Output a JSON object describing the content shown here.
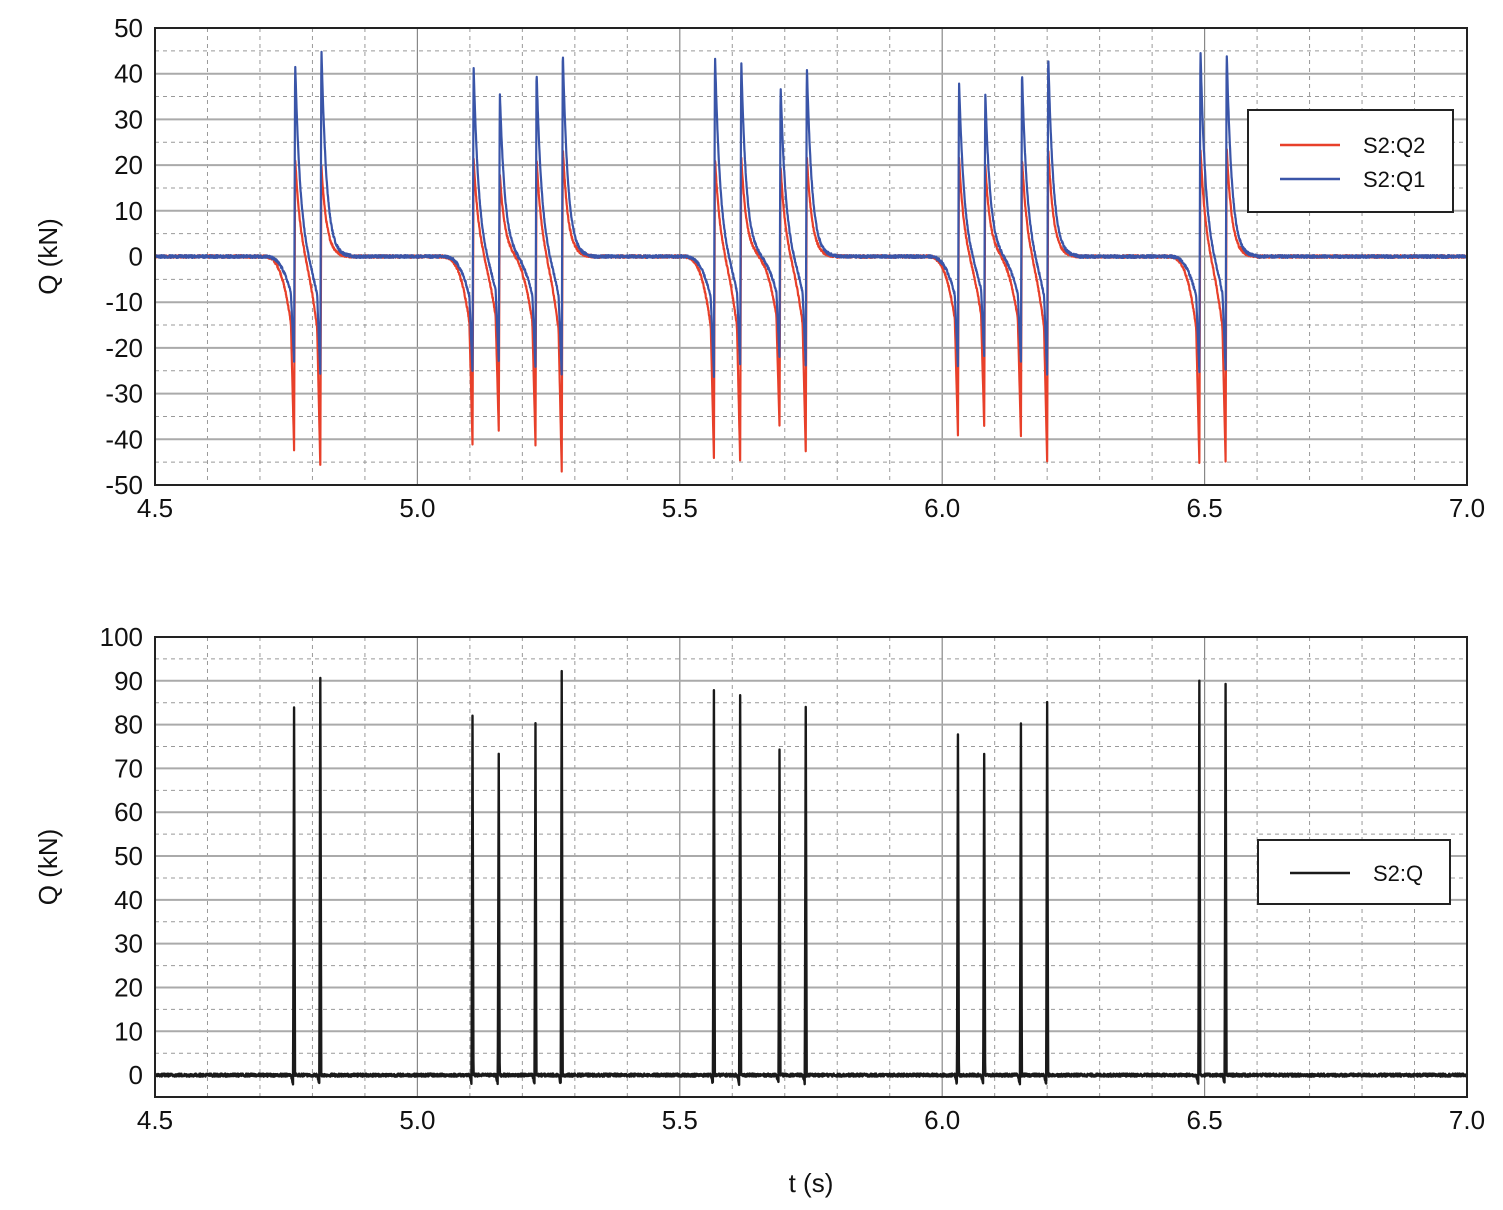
{
  "chart_data": [
    {
      "type": "line",
      "title": "",
      "xlabel": "",
      "ylabel": "Q (kN)",
      "xlim": [
        4.5,
        7.0
      ],
      "ylim": [
        -50,
        50
      ],
      "x_ticks": [
        "4.5",
        "5.0",
        "5.5",
        "6.0",
        "6.5",
        "7.0"
      ],
      "y_ticks": [
        "50",
        "40",
        "30",
        "20",
        "10",
        "0",
        "-10",
        "-20",
        "-30",
        "-40",
        "-50"
      ],
      "grid": true,
      "legend_position": "top-right",
      "series": [
        {
          "name": "S2:Q2",
          "color": "#e8402a",
          "baseline": 0,
          "events": [
            {
              "t": 4.765,
              "peak": 22,
              "trough": -42
            },
            {
              "t": 4.815,
              "peak": 20,
              "trough": -46
            },
            {
              "t": 5.105,
              "peak": 22,
              "trough": -41
            },
            {
              "t": 5.155,
              "peak": 18,
              "trough": -38
            },
            {
              "t": 5.225,
              "peak": 22,
              "trough": -41
            },
            {
              "t": 5.275,
              "peak": 24,
              "trough": -47
            },
            {
              "t": 5.565,
              "peak": 22,
              "trough": -44
            },
            {
              "t": 5.615,
              "peak": 22,
              "trough": -45
            },
            {
              "t": 5.69,
              "peak": 20,
              "trough": -37
            },
            {
              "t": 5.74,
              "peak": 22,
              "trough": -43
            },
            {
              "t": 6.03,
              "peak": 22,
              "trough": -39
            },
            {
              "t": 6.08,
              "peak": 20,
              "trough": -37
            },
            {
              "t": 6.15,
              "peak": 22,
              "trough": -39
            },
            {
              "t": 6.2,
              "peak": 24,
              "trough": -45
            },
            {
              "t": 6.49,
              "peak": 24,
              "trough": -45
            },
            {
              "t": 6.54,
              "peak": 24,
              "trough": -45
            }
          ]
        },
        {
          "name": "S2:Q1",
          "color": "#3a55a8",
          "baseline": 0,
          "events": [
            {
              "t": 4.765,
              "peak": 43,
              "trough": -23
            },
            {
              "t": 4.815,
              "peak": 46,
              "trough": -26
            },
            {
              "t": 5.105,
              "peak": 42,
              "trough": -25
            },
            {
              "t": 5.155,
              "peak": 36,
              "trough": -23
            },
            {
              "t": 5.225,
              "peak": 41,
              "trough": -24
            },
            {
              "t": 5.275,
              "peak": 45,
              "trough": -26
            },
            {
              "t": 5.565,
              "peak": 45,
              "trough": -26
            },
            {
              "t": 5.615,
              "peak": 43,
              "trough": -24
            },
            {
              "t": 5.69,
              "peak": 38,
              "trough": -22
            },
            {
              "t": 5.74,
              "peak": 42,
              "trough": -24
            },
            {
              "t": 6.03,
              "peak": 39,
              "trough": -24
            },
            {
              "t": 6.08,
              "peak": 36,
              "trough": -22
            },
            {
              "t": 6.15,
              "peak": 41,
              "trough": -23
            },
            {
              "t": 6.2,
              "peak": 44,
              "trough": -26
            },
            {
              "t": 6.49,
              "peak": 46,
              "trough": -25
            },
            {
              "t": 6.54,
              "peak": 45,
              "trough": -25
            }
          ]
        }
      ]
    },
    {
      "type": "line",
      "title": "",
      "xlabel": "t (s)",
      "ylabel": "Q (kN)",
      "xlim": [
        4.5,
        7.0
      ],
      "ylim": [
        -5,
        100
      ],
      "x_ticks": [
        "4.5",
        "5.0",
        "5.5",
        "6.0",
        "6.5",
        "7.0"
      ],
      "y_ticks": [
        "100",
        "90",
        "80",
        "70",
        "60",
        "50",
        "40",
        "30",
        "20",
        "10",
        "0"
      ],
      "grid": true,
      "legend_position": "right",
      "series": [
        {
          "name": "S2:Q",
          "color": "#1a1a1a",
          "baseline": 0,
          "events": [
            {
              "t": 4.765,
              "peak": 84,
              "trough": -2
            },
            {
              "t": 4.815,
              "peak": 91,
              "trough": -2
            },
            {
              "t": 5.105,
              "peak": 82,
              "trough": -2
            },
            {
              "t": 5.155,
              "peak": 73,
              "trough": -2
            },
            {
              "t": 5.225,
              "peak": 80,
              "trough": -2
            },
            {
              "t": 5.275,
              "peak": 92,
              "trough": -2
            },
            {
              "t": 5.565,
              "peak": 88,
              "trough": -2
            },
            {
              "t": 5.615,
              "peak": 87,
              "trough": -2
            },
            {
              "t": 5.69,
              "peak": 74,
              "trough": -2
            },
            {
              "t": 5.74,
              "peak": 84,
              "trough": -2
            },
            {
              "t": 6.03,
              "peak": 78,
              "trough": -2
            },
            {
              "t": 6.08,
              "peak": 73,
              "trough": -2
            },
            {
              "t": 6.15,
              "peak": 80,
              "trough": -2
            },
            {
              "t": 6.2,
              "peak": 85,
              "trough": -2
            },
            {
              "t": 6.49,
              "peak": 90,
              "trough": -2
            },
            {
              "t": 6.54,
              "peak": 89,
              "trough": -2
            }
          ]
        }
      ]
    }
  ]
}
